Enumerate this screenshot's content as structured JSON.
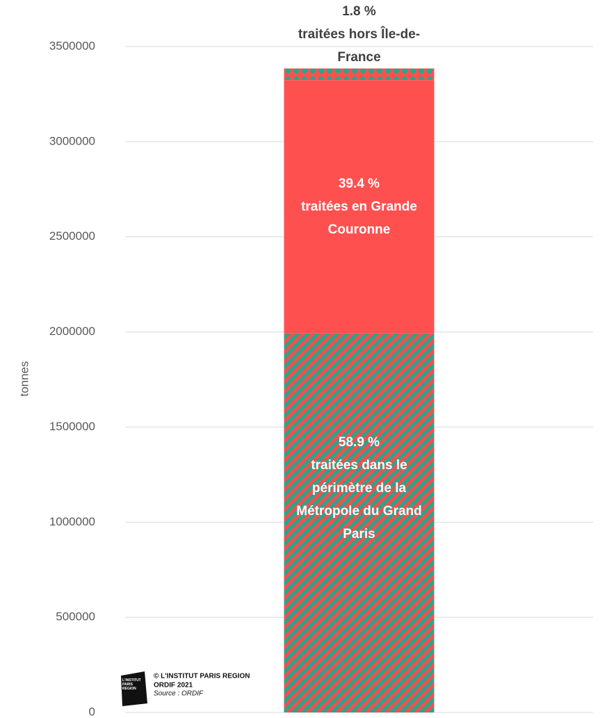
{
  "chart_data": {
    "type": "stacked_bar",
    "y_label": "tonnes",
    "categories": [
      null
    ],
    "series": [
      {
        "name": "traitées dans le périmètre de la Métropole du Grand Paris",
        "share": "58.9 %",
        "color": "#f05050",
        "pattern": "stripes",
        "pattern_color": "#2aa58a",
        "values": [
          1992000
        ]
      },
      {
        "name": "traitées en Grande Couronne",
        "share": "39.4 %",
        "color": "#ff5050",
        "pattern": null,
        "values": [
          1332000
        ]
      },
      {
        "name": "traitées hors Île-de-France",
        "share": "1.8 %",
        "color": "#ff5050",
        "pattern": "diamonds",
        "pattern_color": "#2aa58a",
        "values": [
          61000
        ]
      }
    ],
    "ylim": [
      0,
      3500000
    ],
    "yticks": [
      0,
      500000,
      1000000,
      1500000,
      2000000,
      2500000,
      3000000,
      3500000
    ],
    "grid": true,
    "logo": {
      "text": "L'INSTITUT PARIS REGION",
      "credit": "© L'INSTITUT PARIS REGION",
      "edition": "ORDIF 2021",
      "source": "Source : ORDIF"
    }
  }
}
